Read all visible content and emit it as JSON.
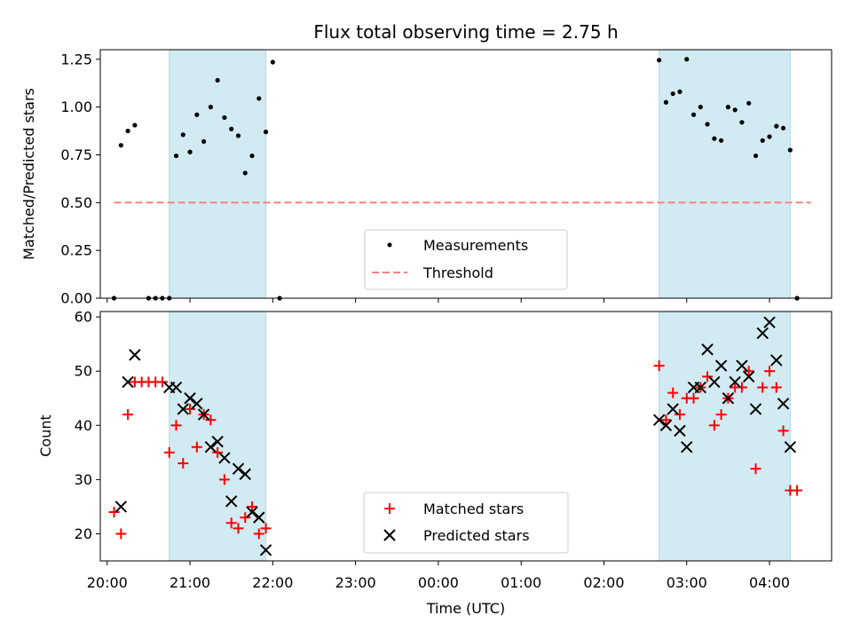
{
  "chart_data": [
    {
      "type": "scatter",
      "title": "Flux total observing time = 2.75 h",
      "ylabel": "Matched/Predicted stars",
      "xlabel": "",
      "ylim": [
        0,
        1.3
      ],
      "yticks": [
        "0.00",
        "0.25",
        "0.50",
        "0.75",
        "1.00",
        "1.25"
      ],
      "xlim": [
        "19:55",
        "04:45"
      ],
      "x_axis": "Time (UTC)",
      "shaded_intervals": [
        [
          "20:45",
          "21:55"
        ],
        [
          "02:40",
          "04:15"
        ]
      ],
      "legend": {
        "position": "lower center",
        "entries": [
          "Measurements",
          "Threshold"
        ]
      },
      "threshold": {
        "name": "Threshold",
        "y": 0.5,
        "x_start": "20:05",
        "x_end": "04:30",
        "color": "#ff7f7f"
      },
      "series": [
        {
          "name": "Measurements",
          "color": "#000000",
          "points": [
            [
              "20:05",
              0.0
            ],
            [
              "20:10",
              0.8
            ],
            [
              "20:15",
              0.875
            ],
            [
              "20:20",
              0.905
            ],
            [
              "20:30",
              0.0
            ],
            [
              "20:35",
              0.0
            ],
            [
              "20:40",
              0.0
            ],
            [
              "20:45",
              0.0
            ],
            [
              "20:50",
              0.745
            ],
            [
              "20:55",
              0.855
            ],
            [
              "21:00",
              0.765
            ],
            [
              "21:05",
              0.96
            ],
            [
              "21:10",
              0.82
            ],
            [
              "21:15",
              1.0
            ],
            [
              "21:20",
              1.14
            ],
            [
              "21:25",
              0.945
            ],
            [
              "21:30",
              0.885
            ],
            [
              "21:35",
              0.85
            ],
            [
              "21:40",
              0.655
            ],
            [
              "21:45",
              0.745
            ],
            [
              "21:50",
              1.045
            ],
            [
              "21:55",
              0.87
            ],
            [
              "22:00",
              1.235
            ],
            [
              "22:05",
              0.0
            ],
            [
              "02:40",
              1.245
            ],
            [
              "02:45",
              1.025
            ],
            [
              "02:50",
              1.07
            ],
            [
              "02:55",
              1.08
            ],
            [
              "03:00",
              1.25
            ],
            [
              "03:05",
              0.96
            ],
            [
              "03:10",
              1.0
            ],
            [
              "03:15",
              0.91
            ],
            [
              "03:20",
              0.835
            ],
            [
              "03:25",
              0.825
            ],
            [
              "03:30",
              1.0
            ],
            [
              "03:35",
              0.985
            ],
            [
              "03:40",
              0.92
            ],
            [
              "03:45",
              1.02
            ],
            [
              "03:50",
              0.745
            ],
            [
              "03:55",
              0.825
            ],
            [
              "04:00",
              0.845
            ],
            [
              "04:05",
              0.9
            ],
            [
              "04:10",
              0.89
            ],
            [
              "04:15",
              0.775
            ],
            [
              "04:20",
              0.0
            ]
          ]
        }
      ]
    },
    {
      "type": "scatter",
      "title": "",
      "ylabel": "Count",
      "xlabel": "Time (UTC)",
      "ylim": [
        15,
        61
      ],
      "yticks": [
        "20",
        "30",
        "40",
        "50",
        "60"
      ],
      "xlim": [
        "19:55",
        "04:45"
      ],
      "xticks": [
        "20:00",
        "21:00",
        "22:00",
        "23:00",
        "00:00",
        "01:00",
        "02:00",
        "03:00",
        "04:00"
      ],
      "shaded_intervals": [
        [
          "20:45",
          "21:55"
        ],
        [
          "02:40",
          "04:15"
        ]
      ],
      "legend": {
        "position": "lower center",
        "entries": [
          "Matched stars",
          "Predicted stars"
        ]
      },
      "series": [
        {
          "name": "Matched stars",
          "marker": "plus",
          "color": "#ff0000",
          "points": [
            [
              "20:05",
              24
            ],
            [
              "20:10",
              20
            ],
            [
              "20:15",
              42
            ],
            [
              "20:20",
              48
            ],
            [
              "20:25",
              48
            ],
            [
              "20:30",
              48
            ],
            [
              "20:35",
              48
            ],
            [
              "20:40",
              48
            ],
            [
              "20:45",
              35
            ],
            [
              "20:50",
              40
            ],
            [
              "20:55",
              33
            ],
            [
              "21:00",
              43
            ],
            [
              "21:05",
              36
            ],
            [
              "21:10",
              42
            ],
            [
              "21:15",
              41
            ],
            [
              "21:20",
              35
            ],
            [
              "21:25",
              30
            ],
            [
              "21:30",
              22
            ],
            [
              "21:35",
              21
            ],
            [
              "21:40",
              23
            ],
            [
              "21:45",
              25
            ],
            [
              "21:50",
              20
            ],
            [
              "21:55",
              21
            ],
            [
              "02:40",
              51
            ],
            [
              "02:45",
              41
            ],
            [
              "02:50",
              46
            ],
            [
              "02:55",
              42
            ],
            [
              "03:00",
              45
            ],
            [
              "03:05",
              45
            ],
            [
              "03:10",
              47
            ],
            [
              "03:15",
              49
            ],
            [
              "03:20",
              40
            ],
            [
              "03:25",
              42
            ],
            [
              "03:30",
              45
            ],
            [
              "03:35",
              47
            ],
            [
              "03:40",
              47
            ],
            [
              "03:45",
              50
            ],
            [
              "03:50",
              32
            ],
            [
              "03:55",
              47
            ],
            [
              "04:00",
              50
            ],
            [
              "04:05",
              47
            ],
            [
              "04:10",
              39
            ],
            [
              "04:15",
              28
            ],
            [
              "04:20",
              28
            ]
          ]
        },
        {
          "name": "Predicted stars",
          "marker": "x",
          "color": "#000000",
          "points": [
            [
              "20:10",
              25
            ],
            [
              "20:15",
              48
            ],
            [
              "20:20",
              53
            ],
            [
              "20:45",
              47
            ],
            [
              "20:50",
              47
            ],
            [
              "20:55",
              43
            ],
            [
              "21:00",
              45
            ],
            [
              "21:05",
              44
            ],
            [
              "21:10",
              42
            ],
            [
              "21:15",
              36
            ],
            [
              "21:20",
              37
            ],
            [
              "21:25",
              34
            ],
            [
              "21:30",
              26
            ],
            [
              "21:35",
              32
            ],
            [
              "21:40",
              31
            ],
            [
              "21:45",
              24
            ],
            [
              "21:50",
              23
            ],
            [
              "21:55",
              17
            ],
            [
              "02:40",
              41
            ],
            [
              "02:45",
              40
            ],
            [
              "02:50",
              43
            ],
            [
              "02:55",
              39
            ],
            [
              "03:00",
              36
            ],
            [
              "03:05",
              47
            ],
            [
              "03:10",
              47
            ],
            [
              "03:15",
              54
            ],
            [
              "03:20",
              48
            ],
            [
              "03:25",
              51
            ],
            [
              "03:30",
              45
            ],
            [
              "03:35",
              48
            ],
            [
              "03:40",
              51
            ],
            [
              "03:45",
              49
            ],
            [
              "03:50",
              43
            ],
            [
              "03:55",
              57
            ],
            [
              "04:00",
              59
            ],
            [
              "04:05",
              52
            ],
            [
              "04:10",
              44
            ],
            [
              "04:15",
              36
            ]
          ]
        }
      ]
    }
  ]
}
